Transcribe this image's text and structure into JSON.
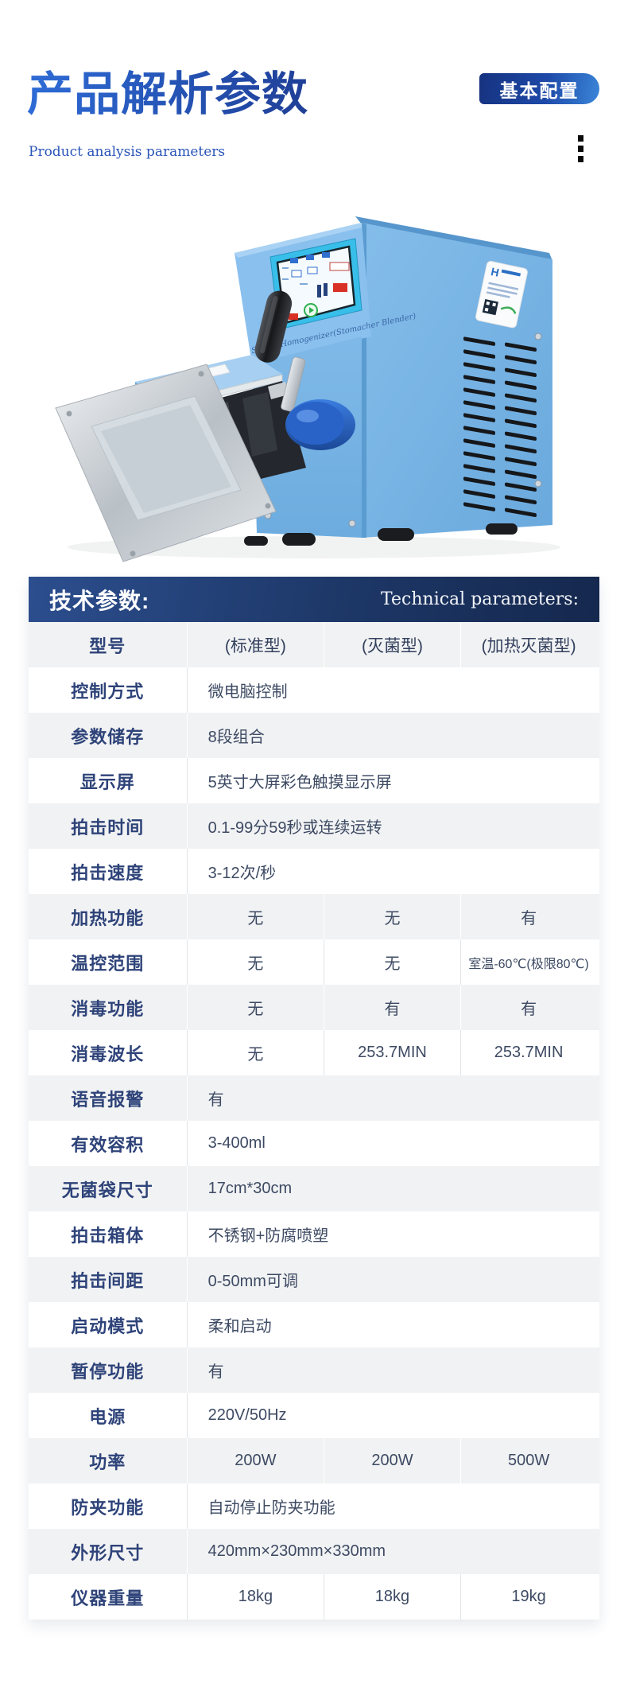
{
  "header": {
    "title_cn": "产品解析参数",
    "subtitle_en": "Product analysis parameters",
    "badge": "基本配置"
  },
  "machine": {
    "screen_caption": "Sterile Homogenizer(Stomacher Blender)",
    "brand_letter": "H",
    "body_color": "#74b2e4",
    "screen_bezel_color": "#38bfe9"
  },
  "tech_banner": {
    "title_cn": "技术参数:",
    "title_en": "Technical parameters:"
  },
  "table": {
    "header": {
      "label": "型号",
      "cols": [
        "(标准型)",
        "(灭菌型)",
        "(加热灭菌型)"
      ]
    },
    "rows": [
      {
        "label": "控制方式",
        "span": "微电脑控制"
      },
      {
        "label": "参数储存",
        "span": "8段组合"
      },
      {
        "label": "显示屏",
        "span": "5英寸大屏彩色触摸显示屏"
      },
      {
        "label": "拍击时间",
        "span": "0.1-99分59秒或连续运转"
      },
      {
        "label": "拍击速度",
        "span": "3-12次/秒"
      },
      {
        "label": "加热功能",
        "cols": [
          "无",
          "无",
          "有"
        ]
      },
      {
        "label": "温控范围",
        "cols": [
          "无",
          "无",
          "室温-60℃(极限80℃)"
        ]
      },
      {
        "label": "消毒功能",
        "cols": [
          "无",
          "有",
          "有"
        ]
      },
      {
        "label": "消毒波长",
        "cols": [
          "无",
          "253.7MIN",
          "253.7MIN"
        ]
      },
      {
        "label": "语音报警",
        "span": "有"
      },
      {
        "label": "有效容积",
        "span": "3-400ml"
      },
      {
        "label": "无菌袋尺寸",
        "span": "17cm*30cm"
      },
      {
        "label": "拍击箱体",
        "span": "不锈钢+防腐喷塑"
      },
      {
        "label": "拍击间距",
        "span": "0-50mm可调"
      },
      {
        "label": "启动模式",
        "span": "柔和启动"
      },
      {
        "label": "暂停功能",
        "span": "有"
      },
      {
        "label": "电源",
        "span": "220V/50Hz"
      },
      {
        "label": "功率",
        "cols": [
          "200W",
          "200W",
          "500W"
        ]
      },
      {
        "label": "防夹功能",
        "span": "自动停止防夹功能"
      },
      {
        "label": "外形尺寸",
        "span": "420mm×230mm×330mm"
      },
      {
        "label": "仪器重量",
        "cols": [
          "18kg",
          "18kg",
          "19kg"
        ]
      }
    ]
  },
  "colors": {
    "title_blue": "#2456b4",
    "banner_navy": "#1d3767",
    "row_gray": "#f1f2f3",
    "label_navy": "#2e4379",
    "value_slate": "#3d4a63"
  }
}
